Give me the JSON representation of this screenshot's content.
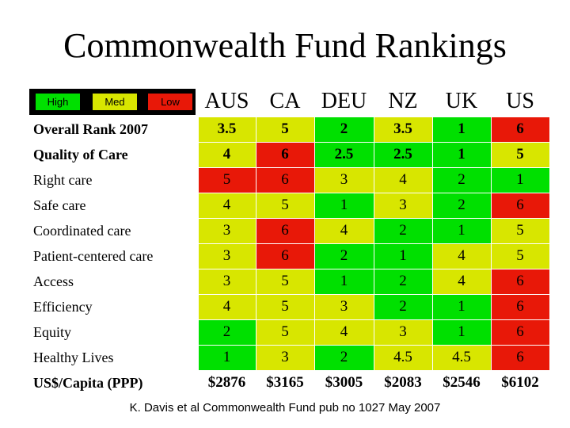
{
  "title": "Commonwealth Fund Rankings",
  "legend": {
    "high": "High",
    "med": "Med",
    "low": "Low",
    "colors": {
      "high": "#00e000",
      "med": "#d8e600",
      "low": "#e81808"
    }
  },
  "columns": [
    "AUS",
    "CA",
    "DEU",
    "NZ",
    "UK",
    "US"
  ],
  "rows": [
    {
      "label": "Overall Rank 2007",
      "values": [
        "3.5",
        "5",
        "2",
        "3.5",
        "1",
        "6"
      ],
      "levels": [
        "med",
        "med",
        "high",
        "med",
        "high",
        "low"
      ]
    },
    {
      "label": "Quality of Care",
      "values": [
        "4",
        "6",
        "2.5",
        "2.5",
        "1",
        "5"
      ],
      "levels": [
        "med",
        "low",
        "high",
        "high",
        "high",
        "med"
      ]
    },
    {
      "label": "Right care",
      "values": [
        "5",
        "6",
        "3",
        "4",
        "2",
        "1"
      ],
      "levels": [
        "low",
        "low",
        "med",
        "med",
        "high",
        "high"
      ]
    },
    {
      "label": "Safe care",
      "values": [
        "4",
        "5",
        "1",
        "3",
        "2",
        "6"
      ],
      "levels": [
        "med",
        "med",
        "high",
        "med",
        "high",
        "low"
      ]
    },
    {
      "label": "Coordinated care",
      "values": [
        "3",
        "6",
        "4",
        "2",
        "1",
        "5"
      ],
      "levels": [
        "med",
        "low",
        "med",
        "high",
        "high",
        "med"
      ]
    },
    {
      "label": "Patient-centered care",
      "values": [
        "3",
        "6",
        "2",
        "1",
        "4",
        "5"
      ],
      "levels": [
        "med",
        "low",
        "high",
        "high",
        "med",
        "med"
      ]
    },
    {
      "label": "Access",
      "values": [
        "3",
        "5",
        "1",
        "2",
        "4",
        "6"
      ],
      "levels": [
        "med",
        "med",
        "high",
        "high",
        "med",
        "low"
      ]
    },
    {
      "label": "Efficiency",
      "values": [
        "4",
        "5",
        "3",
        "2",
        "1",
        "6"
      ],
      "levels": [
        "med",
        "med",
        "med",
        "high",
        "high",
        "low"
      ]
    },
    {
      "label": "Equity",
      "values": [
        "2",
        "5",
        "4",
        "3",
        "1",
        "6"
      ],
      "levels": [
        "high",
        "med",
        "med",
        "med",
        "high",
        "low"
      ]
    },
    {
      "label": "Healthy Lives",
      "values": [
        "1",
        "3",
        "2",
        "4.5",
        "4.5",
        "6"
      ],
      "levels": [
        "high",
        "med",
        "high",
        "med",
        "med",
        "low"
      ]
    },
    {
      "label": "US$/Capita (PPP)",
      "values": [
        "$2876",
        "$3165",
        "$3005",
        "$2083",
        "$2546",
        "$6102"
      ],
      "levels": [
        "plain",
        "plain",
        "plain",
        "plain",
        "plain",
        "plain"
      ]
    }
  ],
  "bold_rows": [
    0,
    1,
    10
  ],
  "source": "K. Davis et al Commonwealth Fund pub no 1027 May 2007"
}
